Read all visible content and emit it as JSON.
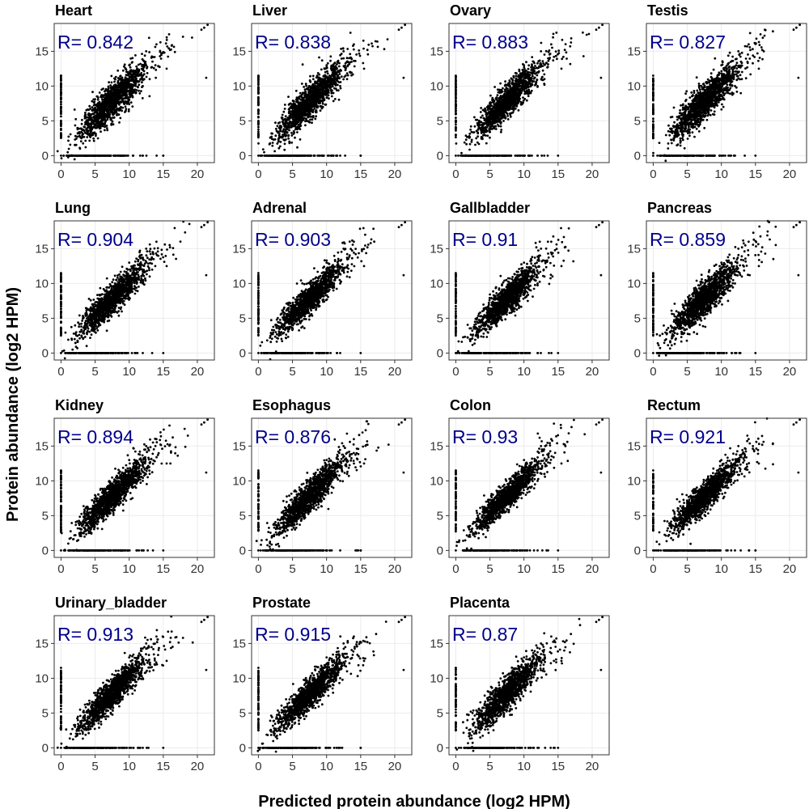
{
  "chart_data": {
    "type": "scatter",
    "layout": "facet grid, 4 columns x 4 rows",
    "xlabel": "Predicted protein abundance (log2 HPM)",
    "ylabel": "Protein abundance (log2 HPM)",
    "xlim": [
      -1,
      22.5
    ],
    "ylim": [
      -1,
      19
    ],
    "x_ticks": [
      0,
      5,
      10,
      15,
      20
    ],
    "y_ticks": [
      0,
      5,
      10,
      15
    ],
    "grid": true,
    "point_color": "#000000",
    "annotation_color": "#00008b",
    "panels": [
      {
        "title": "Heart",
        "r_label": "R= 0.842",
        "r": 0.842
      },
      {
        "title": "Liver",
        "r_label": "R= 0.838",
        "r": 0.838
      },
      {
        "title": "Ovary",
        "r_label": "R= 0.883",
        "r": 0.883
      },
      {
        "title": "Testis",
        "r_label": "R= 0.827",
        "r": 0.827
      },
      {
        "title": "Lung",
        "r_label": "R= 0.904",
        "r": 0.904
      },
      {
        "title": "Adrenal",
        "r_label": "R= 0.903",
        "r": 0.903
      },
      {
        "title": "Gallbladder",
        "r_label": "R= 0.91",
        "r": 0.91
      },
      {
        "title": "Pancreas",
        "r_label": "R= 0.859",
        "r": 0.859
      },
      {
        "title": "Kidney",
        "r_label": "R= 0.894",
        "r": 0.894
      },
      {
        "title": "Esophagus",
        "r_label": "R= 0.876",
        "r": 0.876
      },
      {
        "title": "Colon",
        "r_label": "R= 0.93",
        "r": 0.93
      },
      {
        "title": "Rectum",
        "r_label": "R= 0.921",
        "r": 0.921
      },
      {
        "title": "Urinary_bladder",
        "r_label": "R= 0.913",
        "r": 0.913
      },
      {
        "title": "Prostate",
        "r_label": "R= 0.915",
        "r": 0.915
      },
      {
        "title": "Placenta",
        "r_label": "R= 0.87",
        "r": 0.87
      }
    ],
    "representative_points": [
      [
        21.5,
        18.8
      ],
      [
        21,
        18.4
      ],
      [
        20.6,
        18.1
      ],
      [
        21.3,
        11.2
      ],
      [
        16,
        15.2
      ],
      [
        15.5,
        12.5
      ],
      [
        14,
        16
      ],
      [
        12.5,
        15
      ],
      [
        13,
        11
      ],
      [
        10,
        13
      ],
      [
        9,
        10
      ],
      [
        8,
        8.5
      ],
      [
        7,
        7
      ],
      [
        6,
        5.5
      ],
      [
        5,
        4.5
      ],
      [
        4,
        3.5
      ],
      [
        3,
        2.5
      ],
      [
        11,
        9
      ],
      [
        12,
        10
      ],
      [
        7.5,
        9
      ],
      [
        8.5,
        6.5
      ],
      [
        0,
        0
      ],
      [
        3,
        0
      ],
      [
        6,
        0
      ],
      [
        9,
        0
      ],
      [
        12,
        0
      ],
      [
        15,
        0
      ],
      [
        0,
        3
      ],
      [
        0,
        6
      ],
      [
        0,
        9
      ],
      [
        0,
        11.5
      ]
    ]
  }
}
